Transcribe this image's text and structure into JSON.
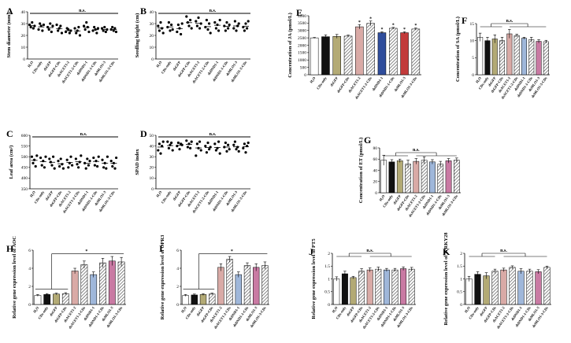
{
  "palette": {
    "white": "#ffffff",
    "black": "#111111",
    "olive": "#b3aa75",
    "hatch": "#7a7a7a",
    "pink": "#d9aaa6",
    "blue": "#9fb7da",
    "magenta": "#c97aa3",
    "jblue": "#2f4d9c",
    "jred": "#c23a3a",
    "kred": "#b5485a"
  },
  "chart_data": [
    {
      "panel": "A",
      "type": "scatter",
      "ylabel": "Stem diameter (mm)",
      "ylim": [
        0,
        40
      ],
      "yticks": [
        0,
        10,
        20,
        30,
        40
      ],
      "categories": [
        "H₂O",
        "CDs-only",
        "dsGFP",
        "dsGFP-CDs",
        "dsACET1-2",
        "dsACET1-2-CDs",
        "dsDND1-1",
        "dsDND1-1-CDs",
        "dsMLO1-3",
        "dsMLO1-3-CDs"
      ],
      "points": [
        [
          29,
          27,
          31,
          26,
          28
        ],
        [
          25,
          30,
          28,
          24,
          29
        ],
        [
          27,
          25,
          30,
          23,
          28
        ],
        [
          29,
          24,
          26,
          28,
          22
        ],
        [
          23,
          26,
          25,
          22,
          24
        ],
        [
          26,
          22,
          24,
          27,
          20
        ],
        [
          28,
          25,
          31,
          27,
          23
        ],
        [
          24,
          27,
          25,
          22,
          26
        ],
        [
          26,
          24,
          27,
          23,
          25
        ],
        [
          25,
          27,
          24,
          26,
          23
        ]
      ],
      "annotation": "n.s."
    },
    {
      "panel": "B",
      "type": "scatter",
      "ylabel": "Seedling height (cm)",
      "ylim": [
        0,
        40
      ],
      "yticks": [
        0,
        10,
        20,
        30,
        40
      ],
      "categories": [
        "H₂O",
        "CDs-only",
        "dsGFP",
        "dsGFP-CDs",
        "dsACET1-2",
        "dsACET1-2-CDs",
        "dsDND1-1",
        "dsDND1-1-CDs",
        "dsMLO1-3",
        "dsMLO1-3-CDs"
      ],
      "points": [
        [
          28,
          24,
          31,
          26,
          22
        ],
        [
          27,
          31,
          24,
          29,
          25
        ],
        [
          23,
          29,
          26,
          21,
          30
        ],
        [
          36,
          31,
          28,
          33,
          26
        ],
        [
          32,
          28,
          35,
          26,
          30
        ],
        [
          27,
          33,
          25,
          30,
          22
        ],
        [
          31,
          26,
          29,
          24,
          33
        ],
        [
          28,
          24,
          31,
          26,
          29
        ],
        [
          26,
          32,
          24,
          28,
          30
        ],
        [
          27,
          24,
          30,
          26,
          32
        ]
      ],
      "annotation": "n.s."
    },
    {
      "panel": "C",
      "type": "scatter",
      "ylabel": "Leaf area (cm²)",
      "ylim": [
        350,
        600
      ],
      "yticks": [
        350,
        400,
        450,
        500,
        550,
        600
      ],
      "categories": [
        "H₂O",
        "CDs-only",
        "dsGFP",
        "dsGFP-CDs",
        "dsACET1-2",
        "dsACET1-2-CDs",
        "dsDND1-1",
        "dsDND1-1-CDs",
        "dsMLO1-3",
        "dsMLO1-3-CDs"
      ],
      "points": [
        [
          500,
          470,
          485,
          455,
          505
        ],
        [
          495,
          460,
          480,
          450,
          500
        ],
        [
          490,
          475,
          460,
          500,
          445
        ],
        [
          480,
          455,
          490,
          465,
          445
        ],
        [
          485,
          450,
          470,
          500,
          460
        ],
        [
          490,
          465,
          450,
          475,
          505
        ],
        [
          470,
          445,
          490,
          460,
          480
        ],
        [
          495,
          460,
          480,
          455,
          500
        ],
        [
          485,
          450,
          470,
          445,
          500
        ],
        [
          480,
          455,
          470,
          445,
          495
        ]
      ],
      "annotation": "n.s."
    },
    {
      "panel": "D",
      "type": "scatter",
      "ylabel": "SPAD index",
      "ylim": [
        0,
        50
      ],
      "yticks": [
        0,
        10,
        20,
        30,
        40,
        50
      ],
      "categories": [
        "H₂O",
        "CDs-only",
        "dsGFP",
        "dsGFP-CDs",
        "dsACET1-2",
        "dsACET1-2-CDs",
        "dsDND1-1",
        "dsDND1-1-CDs",
        "dsMLO1-3",
        "dsMLO1-3-CDs"
      ],
      "points": [
        [
          36,
          42,
          33,
          40,
          44
        ],
        [
          44,
          38,
          41,
          43,
          36
        ],
        [
          40,
          43,
          37,
          42,
          41
        ],
        [
          45,
          39,
          42,
          38,
          44
        ],
        [
          31,
          42,
          38,
          44,
          36
        ],
        [
          40,
          34,
          43,
          37,
          39
        ],
        [
          42,
          36,
          38,
          44,
          33
        ],
        [
          39,
          43,
          35,
          41,
          37
        ],
        [
          41,
          44,
          37,
          39,
          35
        ],
        [
          38,
          42,
          34,
          40,
          43
        ]
      ],
      "annotation": "n.s."
    },
    {
      "panel": "E",
      "type": "bar",
      "ylabel": "Concentration of JA (pmol/L)",
      "ylim": [
        0,
        4000
      ],
      "yticks": [
        0,
        500,
        1000,
        1500,
        2000,
        2500,
        3000,
        3500,
        4000
      ],
      "categories": [
        "H₂O",
        "CDs-only",
        "dsGFP",
        "dsGFP-CDs",
        "dsACET1-2",
        "dsACET1-2-CDs",
        "dsDND1-1",
        "dsDND1-1-CDs",
        "dsMLO1-3",
        "dsMLO1-3-CDs"
      ],
      "values": [
        2500,
        2580,
        2600,
        2620,
        3250,
        3480,
        2850,
        3150,
        2850,
        3100
      ],
      "errors": [
        30,
        120,
        130,
        70,
        150,
        160,
        60,
        60,
        60,
        70
      ],
      "significance": [
        "",
        "",
        "",
        "",
        "*",
        "*",
        "*",
        "*",
        "*",
        "*"
      ]
    },
    {
      "panel": "F",
      "type": "bar",
      "ylabel": "Concentration of SA (pmol/L)",
      "ylim": [
        0,
        15
      ],
      "yticks": [
        0,
        5,
        10,
        15
      ],
      "categories": [
        "H₂O",
        "CDs-only",
        "dsGFP",
        "dsGFP-CDs",
        "dsACET1-2",
        "dsACET1-2-CDs",
        "dsDND1-1",
        "dsDND1-1-CDs",
        "dsMLO1-3",
        "dsMLO1-3-CDs"
      ],
      "values": [
        11,
        10,
        10.5,
        10,
        12,
        11.5,
        10.7,
        10.3,
        9.8,
        9.7
      ],
      "errors": [
        1.2,
        1.0,
        1.2,
        1.0,
        1.3,
        0.4,
        0.3,
        0.7,
        0.5,
        0.4
      ],
      "annotation": "n.s."
    },
    {
      "panel": "G",
      "type": "bar",
      "ylabel": "Concentration of ET (pmol/L)",
      "ylim": [
        0,
        80
      ],
      "yticks": [
        0,
        20,
        40,
        60,
        80
      ],
      "categories": [
        "H₂O",
        "CDs-only",
        "dsGFP",
        "dsGFP-CDs",
        "dsACET1-2",
        "dsACET1-2-CDs",
        "dsDND1-1",
        "dsDND1-1-CDs",
        "dsMLO1-3",
        "dsMLO1-3-CDs"
      ],
      "values": [
        58,
        55,
        57,
        51,
        56,
        58,
        55,
        51,
        57,
        58
      ],
      "errors": [
        9,
        4,
        3,
        7,
        5,
        6,
        4,
        5,
        4,
        4
      ],
      "annotation": "n.s."
    },
    {
      "panel": "H",
      "type": "bar",
      "ylabel": "Relative gene expression level of AOC",
      "ylim": [
        0,
        6
      ],
      "yticks": [
        0,
        2,
        4,
        6
      ],
      "categories": [
        "H₂O",
        "CDs-only",
        "dsGFP",
        "dsGFP-CDs",
        "dsACET1-2",
        "dsACET1-2-CDs",
        "dsDND1-1",
        "dsDND1-1-CDs",
        "dsMLO1-3",
        "dsMLO1-3-CDs"
      ],
      "values": [
        1.0,
        1.1,
        1.15,
        1.2,
        3.7,
        4.4,
        3.3,
        4.6,
        4.8,
        4.7
      ],
      "errors": [
        0.1,
        0.1,
        0.1,
        0.1,
        0.3,
        0.4,
        0.3,
        0.5,
        0.5,
        0.5
      ],
      "annotation": "*"
    },
    {
      "panel": "I",
      "type": "bar",
      "ylabel": "Relative gene expression level of OPR3",
      "ylim": [
        0,
        6
      ],
      "yticks": [
        0,
        2,
        4,
        6
      ],
      "categories": [
        "H₂O",
        "CDs-only",
        "dsGFP",
        "dsGFP-CDs",
        "dsACET1-2",
        "dsACET1-2-CDs",
        "dsDND1-1",
        "dsDND1-1-CDs",
        "dsMLO1-3",
        "dsMLO1-3-CDs"
      ],
      "values": [
        1.0,
        1.05,
        1.1,
        1.15,
        4.1,
        5.0,
        3.3,
        4.3,
        4.1,
        4.3
      ],
      "errors": [
        0.1,
        0.1,
        0.1,
        0.1,
        0.4,
        0.3,
        0.3,
        0.3,
        0.4,
        0.4
      ],
      "annotation": "*"
    },
    {
      "panel": "J",
      "type": "bar",
      "ylabel": "Relative gene expression level of PT5",
      "ylim": [
        0,
        2.0
      ],
      "yticks": [
        0.0,
        0.5,
        1.0,
        1.5,
        2.0
      ],
      "categories": [
        "H₂O",
        "CDs-only",
        "dsGFP",
        "dsGFP-CDs",
        "dsACET1-2",
        "dsACET1-2-CDs",
        "dsDND1-1",
        "dsDND1-1-CDs",
        "dsMLO1-3",
        "dsMLO1-3-CDs"
      ],
      "values": [
        1.0,
        1.2,
        1.05,
        1.3,
        1.35,
        1.38,
        1.35,
        1.35,
        1.4,
        1.38
      ],
      "errors": [
        0.08,
        0.1,
        0.05,
        0.1,
        0.08,
        0.08,
        0.06,
        0.06,
        0.07,
        0.07
      ],
      "annotation": "n.s."
    },
    {
      "panel": "K",
      "type": "bar",
      "ylabel": "Relative gene expression level of WRKY28",
      "ylim": [
        0,
        2.0
      ],
      "yticks": [
        0.0,
        0.5,
        1.0,
        1.5,
        2.0
      ],
      "categories": [
        "H₂O",
        "CDs-only",
        "dsGFP",
        "dsGFP-CDs",
        "dsACET1-2",
        "dsACET1-2-CDs",
        "dsDND1-1",
        "dsDND1-1-CDs",
        "dsMLO1-3",
        "dsMLO1-3-CDs"
      ],
      "values": [
        1.0,
        1.18,
        1.12,
        1.3,
        1.35,
        1.45,
        1.3,
        1.3,
        1.28,
        1.45
      ],
      "errors": [
        0.1,
        0.1,
        0.12,
        0.08,
        0.07,
        0.06,
        0.1,
        0.08,
        0.08,
        0.05
      ],
      "annotation": "n.s."
    }
  ]
}
